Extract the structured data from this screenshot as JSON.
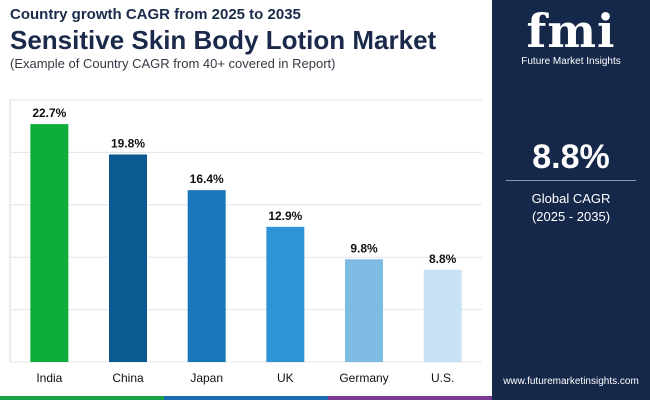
{
  "header": {
    "subtitle_top": "Country growth CAGR from 2025 to 2035",
    "title": "Sensitive Skin Body Lotion Market",
    "note": "(Example of Country CAGR from 40+ covered in Report)"
  },
  "chart_data": {
    "type": "bar",
    "categories": [
      "India",
      "China",
      "Japan",
      "UK",
      "Germany",
      "U.S."
    ],
    "values": [
      22.7,
      19.8,
      16.4,
      12.9,
      9.8,
      8.8
    ],
    "value_labels": [
      "22.7%",
      "19.8%",
      "16.4%",
      "12.9%",
      "9.8%",
      "8.8%"
    ],
    "colors": [
      "#0fae3a",
      "#0b5a92",
      "#1877ba",
      "#2f94d6",
      "#7dbbe3",
      "#c6e2f4"
    ],
    "ylim": [
      0,
      25
    ],
    "grid": true
  },
  "panel": {
    "logo_mark": "fmi",
    "logo_text": "Future Market Insights",
    "cagr_value": "8.8%",
    "cagr_label_line1": "Global CAGR",
    "cagr_label_line2": "(2025 - 2035)",
    "website": "www.futuremarketinsights.com",
    "background": "#16284a"
  },
  "footer_colors": [
    "#18a347",
    "#1c6db0",
    "#7a3a96"
  ]
}
